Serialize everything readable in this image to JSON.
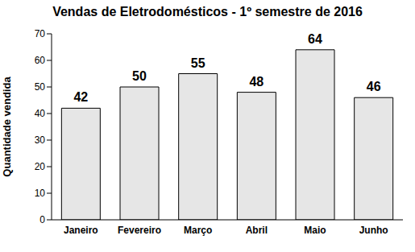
{
  "chart_data": {
    "type": "bar",
    "title": "Vendas de Eletrodomésticos - 1º semestre de 2016",
    "y_label": "Quantidade vendida",
    "categories": [
      "Janeiro",
      "Fevereiro",
      "Março",
      "Abril",
      "Maio",
      "Junho"
    ],
    "values": [
      42,
      50,
      55,
      48,
      64,
      46
    ],
    "color": "#e6e6e6",
    "ylim": [
      0,
      70
    ],
    "yticks": [
      0,
      10,
      20,
      30,
      40,
      50,
      60,
      70
    ],
    "grid": false,
    "data_labels": true
  }
}
